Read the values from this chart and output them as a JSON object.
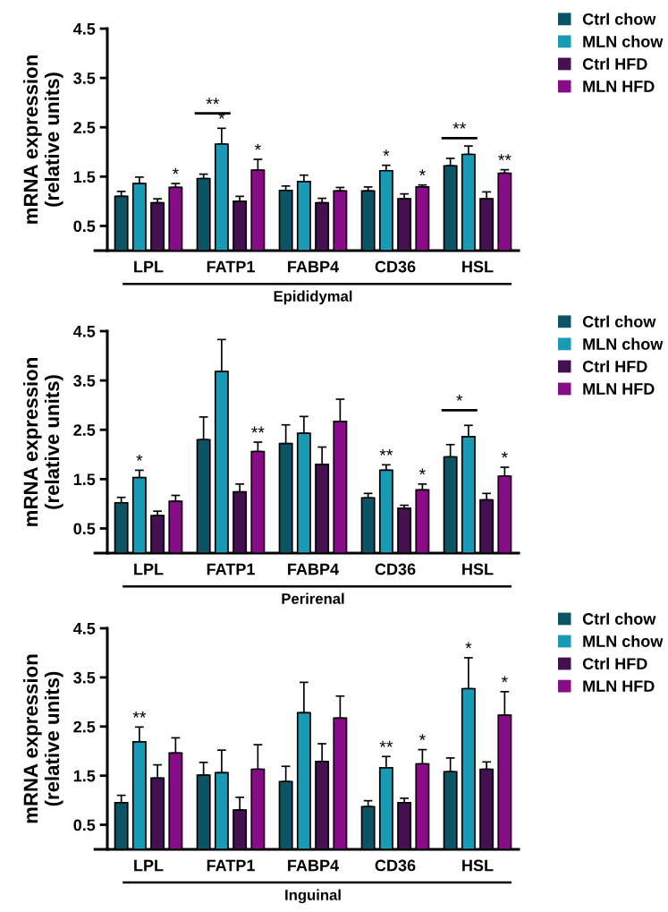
{
  "chart_data": [
    {
      "type": "bar",
      "xlabel": "Epididymal",
      "ylabel": "mRNA expression\n(relative units)",
      "categories": [
        "LPL",
        "FATP1",
        "FABP4",
        "CD36",
        "HSL"
      ],
      "ylim": [
        0,
        4.5
      ],
      "yticks": [
        0.5,
        1.5,
        2.5,
        3.5,
        4.5
      ],
      "grid": false,
      "legend": "top right",
      "series": [
        {
          "name": "Ctrl chow",
          "color": "#0b5466",
          "values": [
            1.1,
            1.46,
            1.22,
            1.21,
            1.72
          ],
          "errors": [
            [
              1.1,
              1.2
            ],
            [
              1.46,
              1.55
            ],
            [
              1.22,
              1.31
            ],
            [
              1.21,
              1.29
            ],
            [
              1.72,
              1.87
            ]
          ],
          "value_labels": [
            null,
            null,
            null,
            null,
            null
          ]
        },
        {
          "name": "MLN chow",
          "color": "#1a9bb5",
          "values": [
            1.36,
            2.16,
            1.4,
            1.62,
            1.95
          ],
          "errors": [
            [
              1.36,
              1.49
            ],
            [
              2.16,
              2.48
            ],
            [
              1.4,
              1.53
            ],
            [
              1.62,
              1.73
            ],
            [
              1.95,
              2.12
            ]
          ],
          "value_labels": [
            null,
            "*",
            null,
            "*",
            null
          ]
        },
        {
          "name": "Ctrl HFD",
          "color": "#45104f",
          "values": [
            0.97,
            1.0,
            0.97,
            1.05,
            1.05
          ],
          "errors": [
            [
              0.97,
              1.05
            ],
            [
              1.0,
              1.1
            ],
            [
              0.97,
              1.06
            ],
            [
              1.05,
              1.15
            ],
            [
              1.05,
              1.19
            ]
          ],
          "value_labels": [
            null,
            null,
            null,
            null,
            null
          ]
        },
        {
          "name": "MLN HFD",
          "color": "#880c88",
          "values": [
            1.28,
            1.63,
            1.21,
            1.29,
            1.57
          ],
          "errors": [
            [
              1.28,
              1.36
            ],
            [
              1.63,
              1.85
            ],
            [
              1.21,
              1.28
            ],
            [
              1.29,
              1.33
            ],
            [
              1.57,
              1.64
            ]
          ],
          "value_labels": [
            "*",
            "*",
            null,
            "*",
            "**"
          ]
        }
      ],
      "annotations": [
        "**",
        "**"
      ]
    },
    {
      "type": "bar",
      "xlabel": "Perirenal",
      "ylabel": "mRNA expression\n(relative units)",
      "categories": [
        "LPL",
        "FATP1",
        "FABP4",
        "CD36",
        "HSL"
      ],
      "ylim": [
        0,
        4.5
      ],
      "yticks": [
        0.5,
        1.5,
        2.5,
        3.5,
        4.5
      ],
      "grid": false,
      "legend": "top right",
      "series": [
        {
          "name": "Ctrl chow",
          "color": "#0b5466",
          "values": [
            1.02,
            2.3,
            2.22,
            1.12,
            1.95
          ],
          "errors": [
            [
              1.02,
              1.13
            ],
            [
              2.3,
              2.76
            ],
            [
              2.22,
              2.6
            ],
            [
              1.12,
              1.21
            ],
            [
              1.95,
              2.2
            ]
          ],
          "value_labels": [
            null,
            null,
            null,
            null,
            null
          ]
        },
        {
          "name": "MLN chow",
          "color": "#1a9bb5",
          "values": [
            1.53,
            3.68,
            2.43,
            1.68,
            2.36
          ],
          "errors": [
            [
              1.53,
              1.68
            ],
            [
              3.68,
              4.33
            ],
            [
              2.43,
              2.77
            ],
            [
              1.68,
              1.79
            ],
            [
              2.36,
              2.59
            ]
          ],
          "value_labels": [
            "*",
            null,
            null,
            "**",
            null
          ]
        },
        {
          "name": "Ctrl HFD",
          "color": "#45104f",
          "values": [
            0.76,
            1.24,
            1.8,
            0.91,
            1.08
          ],
          "errors": [
            [
              0.76,
              0.85
            ],
            [
              1.24,
              1.4
            ],
            [
              1.8,
              2.15
            ],
            [
              0.91,
              0.97
            ],
            [
              1.08,
              1.21
            ]
          ],
          "value_labels": [
            null,
            null,
            null,
            null,
            null
          ]
        },
        {
          "name": "MLN HFD",
          "color": "#880c88",
          "values": [
            1.05,
            2.06,
            2.67,
            1.28,
            1.56
          ],
          "errors": [
            [
              1.05,
              1.17
            ],
            [
              2.06,
              2.25
            ],
            [
              2.67,
              3.12
            ],
            [
              1.28,
              1.4
            ],
            [
              1.56,
              1.74
            ]
          ],
          "value_labels": [
            null,
            "**",
            null,
            "*",
            "*"
          ]
        }
      ],
      "annotations": [
        "*"
      ]
    },
    {
      "type": "bar",
      "xlabel": "Inguinal",
      "ylabel": "mRNA expression\n(relative units)",
      "categories": [
        "LPL",
        "FATP1",
        "FABP4",
        "CD36",
        "HSL"
      ],
      "ylim": [
        0,
        4.5
      ],
      "yticks": [
        0.5,
        1.5,
        2.5,
        3.5,
        4.5
      ],
      "grid": false,
      "legend": "top right",
      "series": [
        {
          "name": "Ctrl chow",
          "color": "#0b5466",
          "values": [
            0.95,
            1.51,
            1.38,
            0.87,
            1.58
          ],
          "errors": [
            [
              0.95,
              1.1
            ],
            [
              1.51,
              1.77
            ],
            [
              1.38,
              1.69
            ],
            [
              0.87,
              0.99
            ],
            [
              1.58,
              1.86
            ]
          ],
          "value_labels": [
            null,
            null,
            null,
            null,
            null
          ]
        },
        {
          "name": "MLN chow",
          "color": "#1a9bb5",
          "values": [
            2.19,
            1.56,
            2.78,
            1.66,
            3.27
          ],
          "errors": [
            [
              2.19,
              2.49
            ],
            [
              1.56,
              2.02
            ],
            [
              2.78,
              3.4
            ],
            [
              1.66,
              1.89
            ],
            [
              3.27,
              3.9
            ]
          ],
          "value_labels": [
            "**",
            null,
            null,
            "**",
            "*"
          ]
        },
        {
          "name": "Ctrl HFD",
          "color": "#45104f",
          "values": [
            1.45,
            0.8,
            1.79,
            0.95,
            1.63
          ],
          "errors": [
            [
              1.45,
              1.72
            ],
            [
              0.8,
              1.06
            ],
            [
              1.79,
              2.15
            ],
            [
              0.95,
              1.04
            ],
            [
              1.63,
              1.78
            ]
          ],
          "value_labels": [
            null,
            null,
            null,
            null,
            null
          ]
        },
        {
          "name": "MLN HFD",
          "color": "#880c88",
          "values": [
            1.96,
            1.63,
            2.67,
            1.74,
            2.73
          ],
          "errors": [
            [
              1.96,
              2.27
            ],
            [
              1.63,
              2.13
            ],
            [
              2.67,
              3.12
            ],
            [
              1.74,
              2.03
            ],
            [
              2.73,
              3.21
            ]
          ],
          "value_labels": [
            null,
            null,
            null,
            "*",
            "*"
          ]
        }
      ]
    }
  ]
}
